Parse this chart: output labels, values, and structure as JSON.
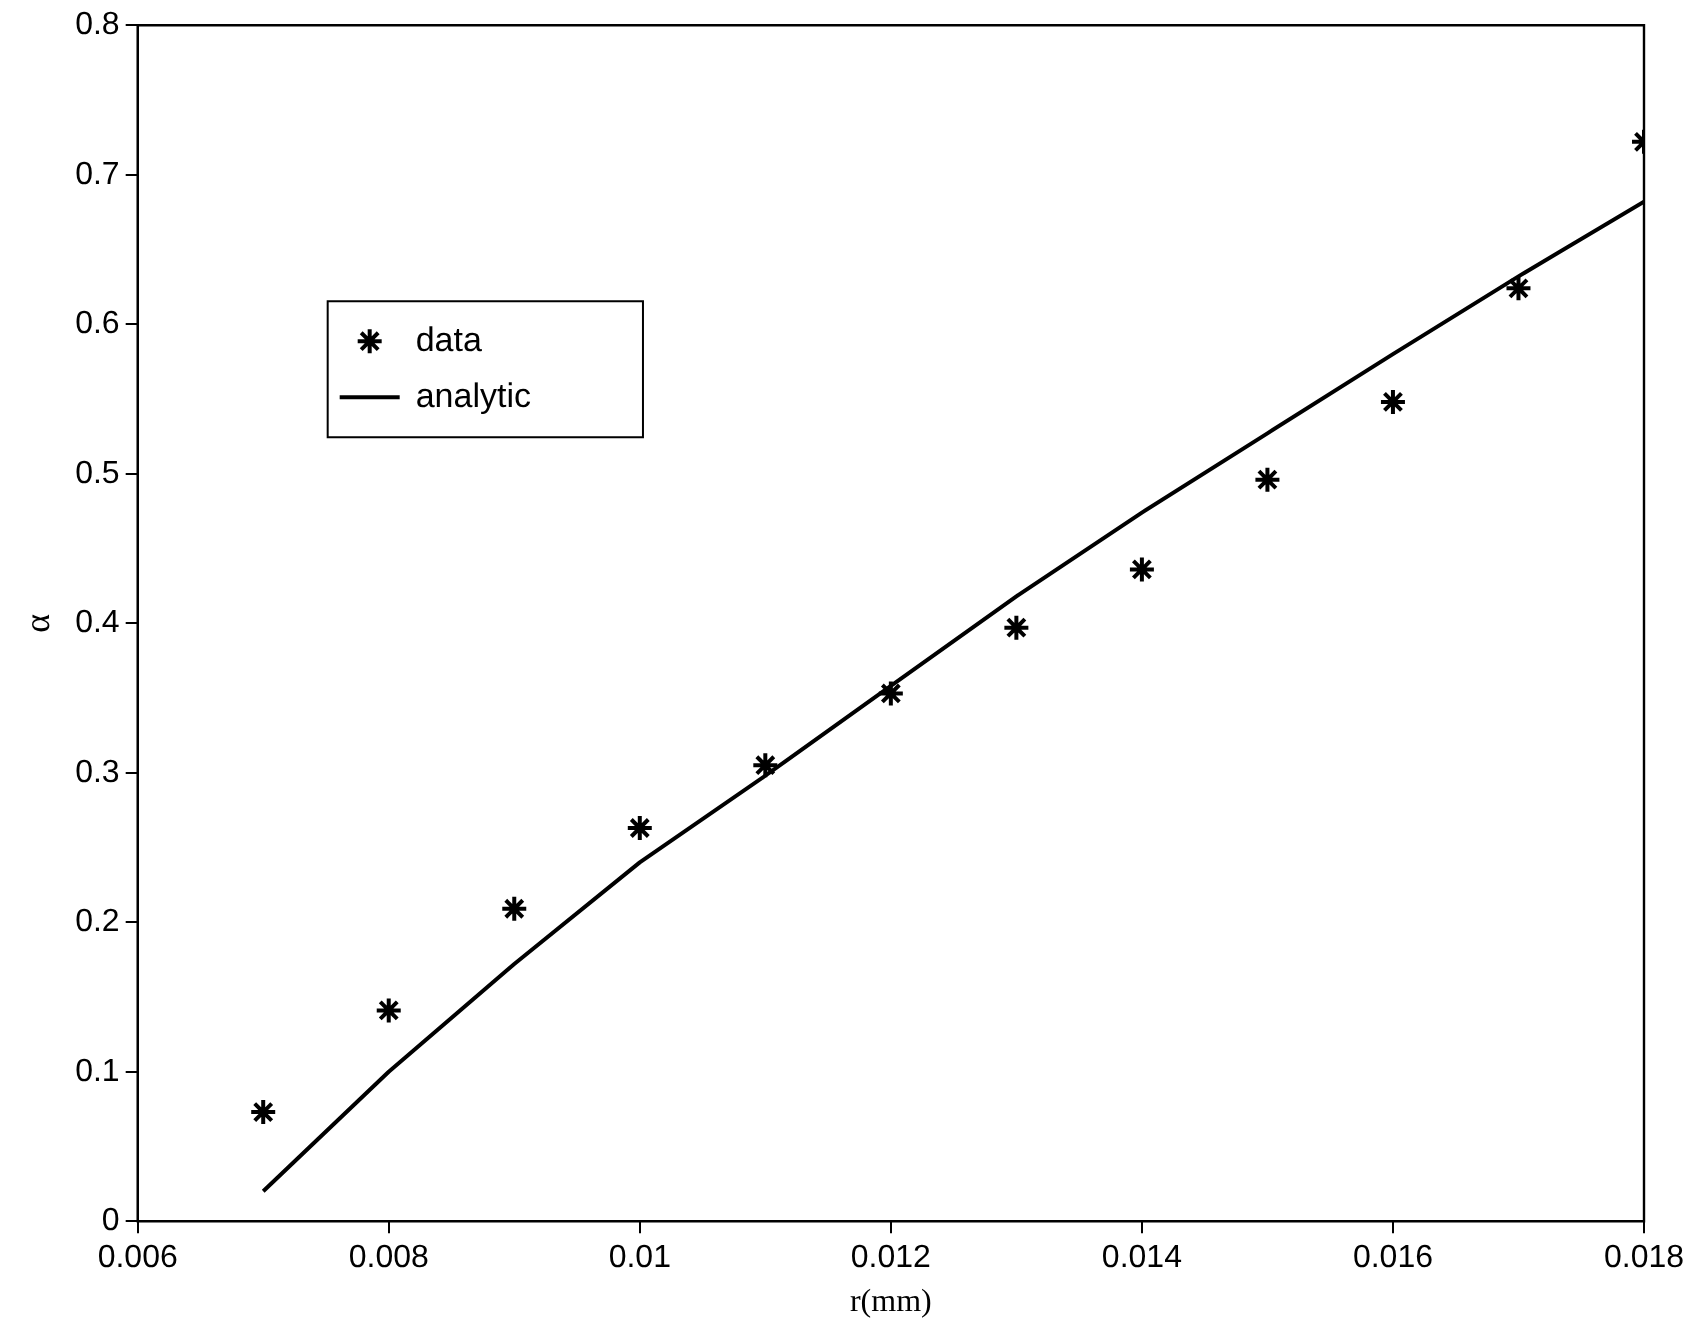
{
  "chart_data": {
    "type": "scatter",
    "xlabel": "r(mm)",
    "ylabel": "α",
    "xlim": [
      0.006,
      0.018
    ],
    "xticks": [
      0.006,
      0.008,
      0.01,
      0.012,
      0.014,
      0.016,
      0.018
    ],
    "ylim": [
      0,
      0.8
    ],
    "yticks": [
      0,
      0.1,
      0.2,
      0.3,
      0.4,
      0.5,
      0.6,
      0.7,
      0.8
    ],
    "grid": false,
    "legend": "top left",
    "series": [
      {
        "name": "data",
        "type": "scatter",
        "marker": "cross",
        "color": "#000000",
        "x": [
          0.007,
          0.008,
          0.009,
          0.01,
          0.011,
          0.012,
          0.013,
          0.014,
          0.015,
          0.016,
          0.017,
          0.018
        ],
        "values": [
          0.073,
          0.141,
          0.209,
          0.263,
          0.305,
          0.353,
          0.397,
          0.436,
          0.496,
          0.548,
          0.624,
          0.722
        ]
      },
      {
        "name": "analytic",
        "type": "line",
        "marker": "none",
        "line_style": "solid",
        "color": "#000000",
        "x": [
          0.007,
          0.008,
          0.009,
          0.01,
          0.011,
          0.012,
          0.013,
          0.014,
          0.015,
          0.016,
          0.017,
          0.018
        ],
        "values": [
          0.02,
          0.1,
          0.172,
          0.24,
          0.298,
          0.358,
          0.418,
          0.474,
          0.527,
          0.58,
          0.632,
          0.682
        ]
      }
    ]
  }
}
